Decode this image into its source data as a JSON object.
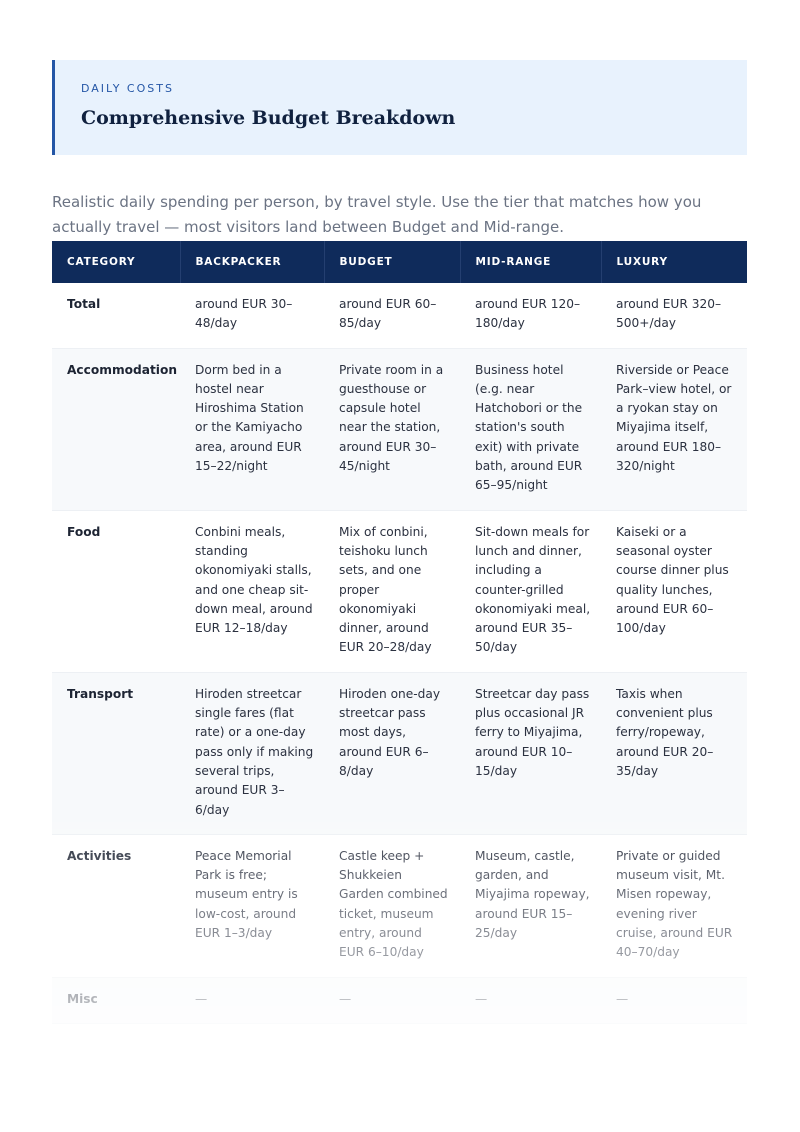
{
  "header": {
    "eyebrow": "DAILY COSTS",
    "title": "Comprehensive Budget Breakdown"
  },
  "intro": "Realistic daily spending per person, by travel style. Use the tier that matches how you actually travel — most visitors land between Budget and Mid-range.",
  "table": {
    "headers": [
      "CATEGORY",
      "BACKPACKER",
      "BUDGET",
      "MID-RANGE",
      "LUXURY"
    ],
    "rows": [
      [
        "Total",
        "around EUR 30–48/day",
        "around EUR 60–85/day",
        "around EUR 120–180/day",
        "around EUR 320–500+/day"
      ],
      [
        "Accommodation",
        "Dorm bed in a hostel near Hiroshima Station or the Kamiyacho area, around EUR 15–22/night",
        "Private room in a guesthouse or capsule hotel near the station, around EUR 30–45/night",
        "Business hotel (e.g. near Hatchobori or the station's south exit) with private bath, around EUR 65–95/night",
        "Riverside or Peace Park–view hotel, or a ryokan stay on Miyajima itself, around EUR 180–320/night"
      ],
      [
        "Food",
        "Conbini meals, standing okonomiyaki stalls, and one cheap sit-down meal, around EUR 12–18/day",
        "Mix of conbini, teishoku lunch sets, and one proper okonomiyaki dinner, around EUR 20–28/day",
        "Sit-down meals for lunch and dinner, including a counter-grilled okonomiyaki meal, around EUR 35–50/day",
        "Kaiseki or a seasonal oyster course dinner plus quality lunches, around EUR 60–100/day"
      ],
      [
        "Transport",
        "Hiroden streetcar single fares (flat rate) or a one-day pass only if making several trips, around EUR 3–6/day",
        "Hiroden one-day streetcar pass most days, around EUR 6–8/day",
        "Streetcar day pass plus occasional JR ferry to Miyajima, around EUR 10–15/day",
        "Taxis when convenient plus ferry/ropeway, around EUR 20–35/day"
      ],
      [
        "Activities",
        "Peace Memorial Park is free; museum entry is low-cost, around EUR 1–3/day",
        "Castle keep + Shukkeien Garden combined ticket, museum entry, around EUR 6–10/day",
        "Museum, castle, garden, and Miyajima ropeway, around EUR 15–25/day",
        "Private or guided museum visit, Mt. Misen ropeway, evening river cruise, around EUR 40–70/day"
      ],
      [
        "Misc",
        "—",
        "—",
        "—",
        "—"
      ]
    ]
  }
}
